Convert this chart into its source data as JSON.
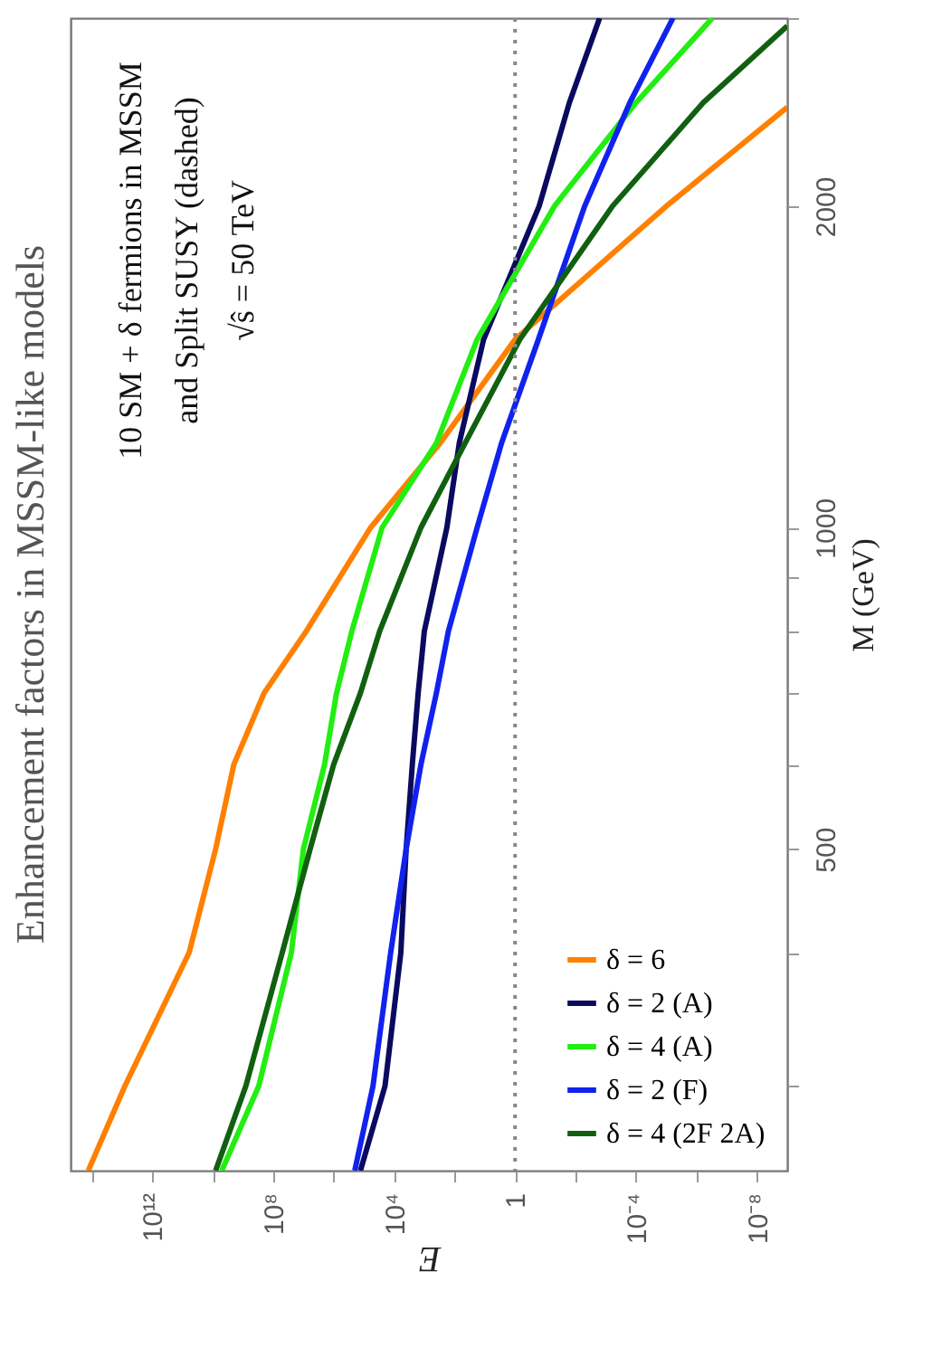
{
  "chart_data": {
    "type": "line",
    "title": "Enhancement factors in MSSM-like models",
    "xlabel": "E",
    "ylabel": "M (GeV)",
    "log": "xy",
    "xlim": [
      500000000000000.0,
      1e-09
    ],
    "ylim": [
      250,
      3000
    ],
    "xticks": [
      {
        "value": 100000000000000.0,
        "label": null
      },
      {
        "value": 1000000000000.0,
        "label": "10¹²"
      },
      {
        "value": 10000000000.0,
        "label": null
      },
      {
        "value": 100000000.0,
        "label": "10⁸"
      },
      {
        "value": 1000000.0,
        "label": null
      },
      {
        "value": 10000.0,
        "label": "10⁴"
      },
      {
        "value": 100,
        "label": null
      },
      1,
      {
        "value": 0.01,
        "label": null
      },
      {
        "value": 0.0001,
        "label": "10⁻⁴"
      },
      {
        "value": 1e-06,
        "label": null
      },
      {
        "value": 1e-08,
        "label": "10⁻⁸"
      }
    ],
    "yticks": [
      {
        "value": 300,
        "label": null
      },
      {
        "value": 400,
        "label": null
      },
      500,
      {
        "value": 600,
        "label": null
      },
      {
        "value": 700,
        "label": null
      },
      {
        "value": 800,
        "label": null
      },
      {
        "value": 900,
        "label": null
      },
      1000,
      2000,
      {
        "value": 3000,
        "label": null
      }
    ],
    "legend": "bottom right",
    "ref_lines": [
      {
        "axis": "x",
        "value": 1,
        "line_style": "dotted",
        "color": "#888888"
      }
    ],
    "annotations": [
      "10 SM + δ fermions in MSSM",
      "and Split SUSY (dashed)",
      "√ŝ = 50 TeV"
    ],
    "series": [
      {
        "name": "δ = 6",
        "color": "#ff8000",
        "x": [
          130000000000000.0,
          8000000000000.0,
          60000000000.0,
          8000000000.0,
          2000000000.0,
          200000000.0,
          8000000.0,
          60000.0,
          300,
          1,
          1e-05,
          1e-09
        ],
        "values": [
          250,
          300,
          400,
          500,
          600,
          700,
          800,
          1000,
          1200,
          1500,
          2000,
          2475
        ]
      },
      {
        "name": "δ = 2 (A)",
        "color": "#0a0a60",
        "x": [
          130000.0,
          20000.0,
          6000.0,
          4000.0,
          2500.0,
          1600.0,
          1000.0,
          180,
          70,
          11,
          0.16,
          0.016,
          0.0016
        ],
        "values": [
          250,
          300,
          400,
          500,
          600,
          700,
          800,
          1000,
          1200,
          1500,
          2000,
          2500,
          3000
        ]
      },
      {
        "name": "δ = 4 (A)",
        "color": "#22ee11",
        "x": [
          5000000000.0,
          300000000.0,
          25000000.0,
          10000000.0,
          2000000.0,
          800000.0,
          250000.0,
          25000.0,
          400,
          18,
          0.05,
          0.0001,
          3e-07
        ],
        "values": [
          250,
          300,
          400,
          500,
          600,
          700,
          800,
          1000,
          1200,
          1500,
          2000,
          2500,
          3000
        ]
      },
      {
        "name": "δ = 2 (F)",
        "color": "#1122ee",
        "x": [
          200000.0,
          50000.0,
          13000.0,
          4000.0,
          1300.0,
          400,
          160,
          18,
          2.8,
          0.17,
          0.005,
          0.00016,
          6e-06
        ],
        "values": [
          250,
          300,
          400,
          500,
          600,
          700,
          800,
          1000,
          1200,
          1500,
          2000,
          2500,
          3000
        ]
      },
      {
        "name": "δ = 4 (2F 2A)",
        "color": "#106010",
        "x": [
          8000000000.0,
          800000000.0,
          50000000.0,
          6000000.0,
          1000000.0,
          130000.0,
          30000.0,
          1300.0,
          45,
          0.7,
          0.0006,
          6e-07,
          1e-09
        ],
        "values": [
          250,
          300,
          400,
          500,
          600,
          700,
          800,
          1000,
          1200,
          1500,
          2000,
          2500,
          2950
        ]
      }
    ]
  }
}
